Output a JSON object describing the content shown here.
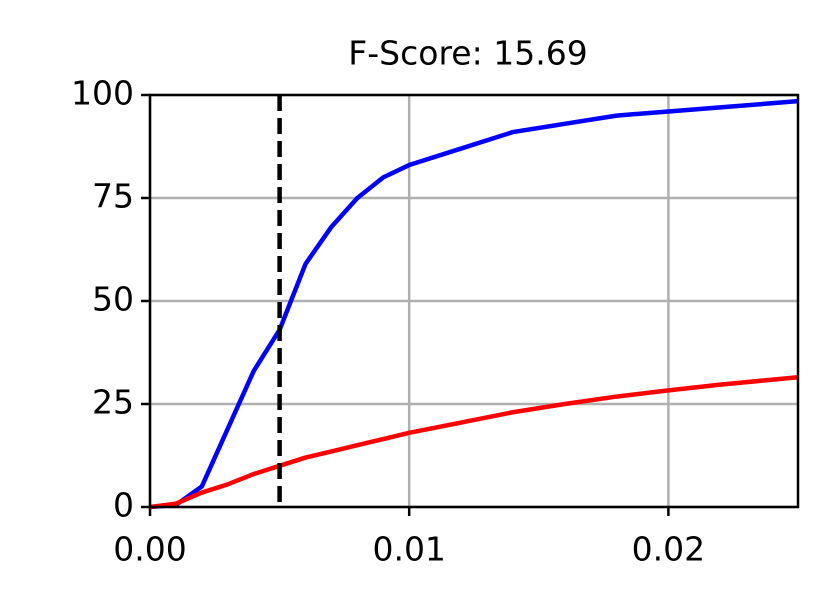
{
  "chart_data": {
    "type": "line",
    "title": "F-Score: 15.69",
    "x": [
      0,
      0.001,
      0.002,
      0.003,
      0.004,
      0.005,
      0.006,
      0.007,
      0.008,
      0.009,
      0.01,
      0.012,
      0.014,
      0.016,
      0.018,
      0.02,
      0.022,
      0.025
    ],
    "series": [
      {
        "color": "#0000ff",
        "values": [
          0,
          0.5,
          5,
          19,
          33,
          43,
          59,
          68,
          75,
          80,
          83,
          87,
          91,
          93,
          95,
          96,
          97,
          98.5
        ]
      },
      {
        "color": "#ff0000",
        "values": [
          0,
          0.8,
          3.5,
          5.5,
          8,
          10,
          12,
          13.5,
          15,
          16.5,
          18,
          20.5,
          23,
          25,
          26.8,
          28.3,
          29.7,
          31.5
        ]
      }
    ],
    "vline": 0.005,
    "vline_color": "#000000",
    "xlim": [
      0,
      0.025
    ],
    "ylim": [
      0,
      100
    ],
    "xticks": [
      {
        "value": 0,
        "label": "0.00"
      },
      0.01,
      0.02
    ],
    "yticks": [
      0,
      25,
      50,
      75,
      100
    ],
    "grid": true
  }
}
